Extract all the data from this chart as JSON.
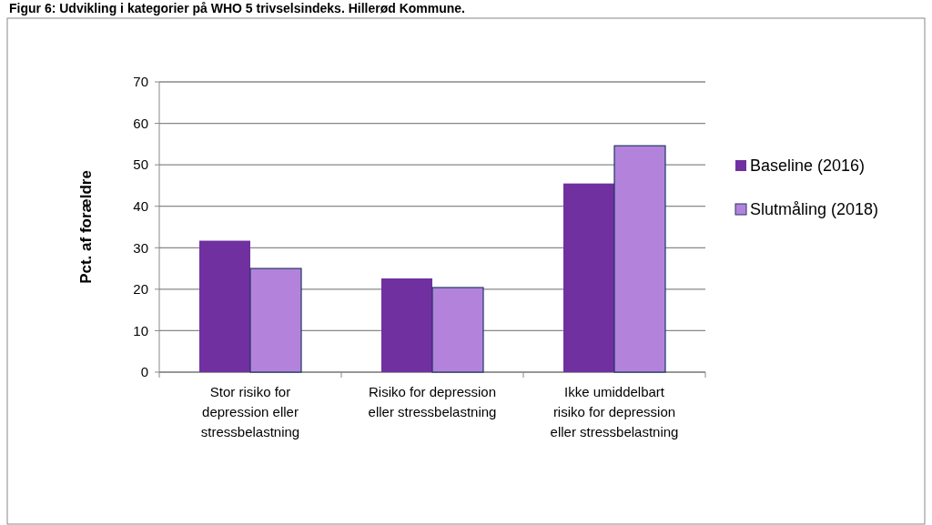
{
  "chart_data": {
    "type": "bar",
    "title": "Figur 6: Udvikling i kategorier på WHO 5 trivselsindeks. Hillerød Kommune.",
    "ylabel": "Pct. af forældre",
    "categories": [
      "Stor risiko for depression eller stressbelastning",
      "Risiko for depression eller stressbelastning",
      "Ikke umiddelbart risiko for depression eller stressbelastning"
    ],
    "series": [
      {
        "name": "Baseline (2016)",
        "color": "#7030a0",
        "values": [
          31.7,
          22.6,
          45.5
        ]
      },
      {
        "name": "Slutmåling (2018)",
        "color": "#b383db",
        "values": [
          25,
          20.4,
          54.6
        ]
      }
    ],
    "ylim": [
      0,
      70
    ],
    "yticks": [
      0,
      10,
      20,
      30,
      40,
      50,
      60,
      70
    ],
    "grid": "y",
    "legend": "right"
  }
}
